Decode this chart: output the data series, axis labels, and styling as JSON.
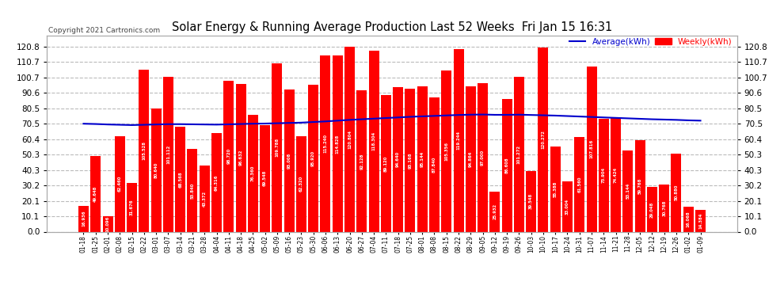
{
  "title": "Solar Energy & Running Average Production Last 52 Weeks  Fri Jan 15 16:31",
  "copyright": "Copyright 2021 Cartronics.com",
  "legend_avg": "Average(kWh)",
  "legend_weekly": "Weekly(kWh)",
  "bar_color": "#ff0000",
  "avg_line_color": "#0000cc",
  "background_color": "#ffffff",
  "plot_bg_color": "#ffffff",
  "grid_color": "#bbbbbb",
  "yticks": [
    0.0,
    10.1,
    20.1,
    30.2,
    40.3,
    50.3,
    60.4,
    70.5,
    80.5,
    90.6,
    100.7,
    110.7,
    120.8
  ],
  "ylim": [
    0,
    128
  ],
  "categories": [
    "01-18",
    "01-25",
    "02-01",
    "02-08",
    "02-15",
    "02-22",
    "03-01",
    "03-07",
    "03-14",
    "03-21",
    "03-28",
    "04-04",
    "04-11",
    "04-18",
    "04-25",
    "05-02",
    "05-09",
    "05-16",
    "05-23",
    "05-30",
    "06-06",
    "06-13",
    "06-20",
    "06-27",
    "07-04",
    "07-11",
    "07-18",
    "07-25",
    "08-01",
    "08-08",
    "08-15",
    "08-22",
    "08-29",
    "09-05",
    "09-12",
    "09-19",
    "09-26",
    "10-03",
    "10-10",
    "10-17",
    "10-24",
    "10-31",
    "11-07",
    "11-14",
    "11-21",
    "11-28",
    "12-05",
    "12-12",
    "12-19",
    "12-26",
    "01-02",
    "01-09"
  ],
  "values": [
    16.936,
    49.648,
    10.096,
    62.46,
    31.676,
    105.528,
    80.64,
    101.112,
    68.568,
    53.84,
    43.372,
    64.316,
    98.72,
    96.632,
    76.36,
    69.548,
    109.788,
    93.008,
    62.32,
    95.92,
    115.24,
    114.828,
    120.804,
    92.128,
    118.304,
    89.12,
    94.64,
    93.168,
    95.144,
    87.84,
    105.356,
    119.244,
    94.864,
    97.0,
    25.932,
    86.608,
    101.272,
    39.548,
    120.272,
    55.388,
    33.004,
    61.56,
    107.816,
    73.904,
    74.424,
    53.144,
    59.768,
    29.048,
    30.768,
    50.88,
    16.068,
    14.384
  ],
  "avg_values": [
    70.5,
    70.3,
    70.0,
    69.8,
    69.6,
    69.8,
    70.0,
    70.2,
    70.2,
    70.1,
    70.0,
    69.9,
    70.1,
    70.3,
    70.5,
    70.6,
    70.8,
    71.0,
    71.2,
    71.6,
    72.0,
    72.5,
    73.0,
    73.4,
    73.8,
    74.2,
    74.6,
    75.0,
    75.3,
    75.6,
    75.9,
    76.2,
    76.4,
    76.5,
    76.3,
    76.3,
    76.4,
    76.2,
    76.0,
    75.8,
    75.5,
    75.2,
    74.9,
    74.6,
    74.3,
    74.0,
    73.7,
    73.4,
    73.2,
    73.0,
    72.7,
    72.5
  ],
  "figsize": [
    9.9,
    3.75
  ],
  "dpi": 100
}
